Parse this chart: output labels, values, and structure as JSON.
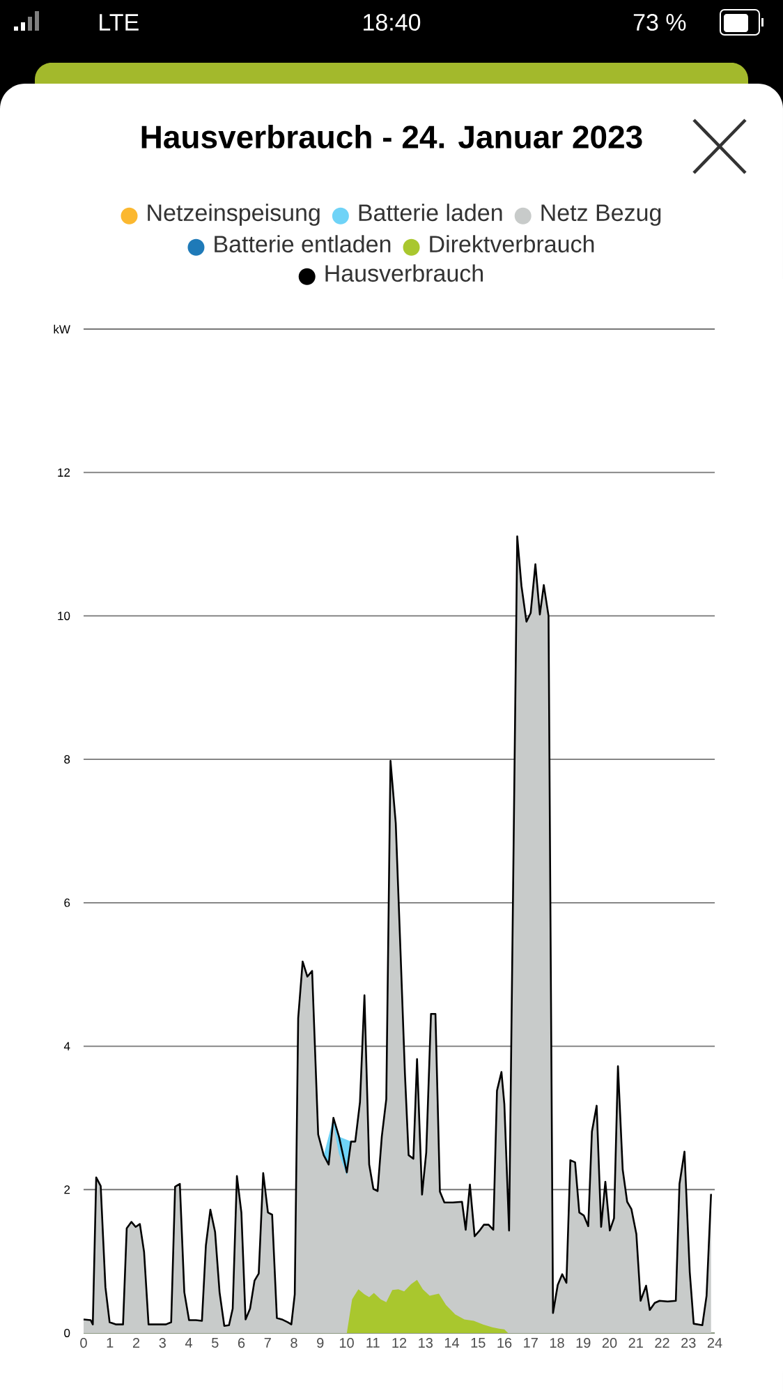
{
  "chart_data": {
    "type": "area",
    "title": "Hausverbrauch - 24. Januar 2023",
    "annotations": [
      "LTE",
      "18:40",
      "73 %"
    ],
    "xlim": [
      0,
      24
    ],
    "xticks": [
      0,
      1,
      2,
      3,
      4,
      5,
      6,
      7,
      8,
      9,
      10,
      11,
      12,
      13,
      14,
      15,
      16,
      17,
      18,
      19,
      20,
      21,
      22,
      23,
      24
    ],
    "ylim": [
      0,
      14
    ],
    "yticks": [
      0,
      2,
      4,
      6,
      8,
      10,
      12,
      {
        "value": 14,
        "label": "kW"
      }
    ],
    "grid": "y",
    "legend": "top",
    "marker": "none",
    "line_style": "solid",
    "series": [
      {
        "name": "Netzeinspeisung",
        "color": "#fbb830"
      },
      {
        "name": "Batterie laden",
        "color": "#6fd3f7",
        "x": [
          9.13,
          9.32,
          9.5,
          9.71,
          10.01,
          10.17,
          10.33
        ],
        "values": [
          2.48,
          null,
          3.0,
          2.74,
          null,
          2.67,
          2.67
        ]
      },
      {
        "name": "Netz Bezug",
        "color": "#c8cbca",
        "x": [
          0,
          0.27,
          0.35,
          0.48,
          0.65,
          0.83,
          0.99,
          1.24,
          1.5,
          1.64,
          1.82,
          1.98,
          2.14,
          2.3,
          2.47,
          2.73,
          3.13,
          3.33,
          3.48,
          3.66,
          3.83,
          4.01,
          4.27,
          4.5,
          4.65,
          4.82,
          5.0,
          5.17,
          5.35,
          5.53,
          5.67,
          5.83,
          6.0,
          6.16,
          6.33,
          6.5,
          6.66,
          6.83,
          7.01,
          7.17,
          7.35,
          7.54,
          7.77,
          7.9,
          8.03,
          8.16,
          8.33,
          8.51,
          8.69,
          8.92,
          9.13,
          9.32,
          9.5,
          9.71,
          10.01,
          10.17,
          10.33,
          10.51,
          10.68,
          10.86,
          11.02,
          11.18,
          11.34,
          11.51,
          11.67,
          11.87,
          12.06,
          12.22,
          12.36,
          12.54,
          12.68,
          12.87,
          13.03,
          13.21,
          13.38,
          13.55,
          13.72,
          14.04,
          14.39,
          14.53,
          14.69,
          14.87,
          15.04,
          15.22,
          15.4,
          15.58,
          15.72,
          15.89,
          16.0,
          16.18,
          16.49,
          16.65,
          16.84,
          17.0,
          17.18,
          17.35,
          17.5,
          17.68,
          17.85,
          18.03,
          18.2,
          18.36,
          18.51,
          18.69,
          18.85,
          19.02,
          19.19,
          19.33,
          19.51,
          19.68,
          19.84,
          20.01,
          20.17,
          20.32,
          20.5,
          20.67,
          20.83,
          21.02,
          21.18,
          21.39,
          21.53,
          21.72,
          21.9,
          22.21,
          22.52,
          22.66,
          22.85,
          23.05,
          23.2,
          23.53,
          23.69,
          23.86
        ],
        "values": [
          0.19,
          0.18,
          0.12,
          2.17,
          2.05,
          0.64,
          0.15,
          0.12,
          0.12,
          1.46,
          1.55,
          1.48,
          1.52,
          1.13,
          0.12,
          0.12,
          0.12,
          0.15,
          2.04,
          2.08,
          0.57,
          0.18,
          0.18,
          0.17,
          1.22,
          1.72,
          1.41,
          0.57,
          0.1,
          0.11,
          0.34,
          2.19,
          1.68,
          0.19,
          0.34,
          0.73,
          0.83,
          2.23,
          1.68,
          1.65,
          0.21,
          0.19,
          0.15,
          0.12,
          0.54,
          4.39,
          5.18,
          4.97,
          5.05,
          2.77,
          2.48,
          2.35,
          2.9,
          2.5,
          2.2,
          2.67,
          2.67,
          3.22,
          4.71,
          2.35,
          2.01,
          1.98,
          2.74,
          3.26,
          7.98,
          7.11,
          5.23,
          3.61,
          2.48,
          2.43,
          3.82,
          1.93,
          2.52,
          4.45,
          4.45,
          1.97,
          1.82,
          1.82,
          1.83,
          1.44,
          2.07,
          1.35,
          1.42,
          1.51,
          1.51,
          1.44,
          3.38,
          3.64,
          3.19,
          1.43,
          11.11,
          10.42,
          9.92,
          10.04,
          10.72,
          10.02,
          10.43,
          10.0,
          0.28,
          0.67,
          0.82,
          0.7,
          2.41,
          2.38,
          1.68,
          1.64,
          1.49,
          2.81,
          3.17,
          1.48,
          2.11,
          1.43,
          1.6,
          3.72,
          2.28,
          1.83,
          1.73,
          1.38,
          0.45,
          0.66,
          0.32,
          0.42,
          0.45,
          0.44,
          0.45,
          2.08,
          2.53,
          0.85,
          0.13,
          0.11,
          0.52,
          1.94
        ]
      },
      {
        "name": "Batterie entladen",
        "color": "#1f7ab8"
      },
      {
        "name": "Direktverbrauch",
        "color": "#a9c72e",
        "x": [
          10.01,
          10.21,
          10.45,
          10.68,
          10.86,
          11.04,
          11.3,
          11.51,
          11.74,
          11.97,
          12.19,
          12.45,
          12.68,
          12.9,
          13.16,
          13.51,
          13.78,
          14.13,
          14.48,
          14.84,
          15.19,
          15.54,
          15.8,
          16.0,
          16.14
        ],
        "values": [
          0,
          0.47,
          0.61,
          0.54,
          0.5,
          0.56,
          0.47,
          0.43,
          0.6,
          0.61,
          0.58,
          0.68,
          0.74,
          0.61,
          0.52,
          0.55,
          0.39,
          0.26,
          0.19,
          0.17,
          0.12,
          0.08,
          0.06,
          0.05,
          0
        ]
      },
      {
        "name": "Hausverbrauch",
        "type": "line",
        "color": "#000000",
        "x": [
          0,
          0.27,
          0.35,
          0.48,
          0.65,
          0.83,
          0.99,
          1.24,
          1.5,
          1.64,
          1.82,
          1.98,
          2.14,
          2.3,
          2.47,
          2.73,
          3.13,
          3.33,
          3.48,
          3.66,
          3.83,
          4.01,
          4.27,
          4.5,
          4.65,
          4.82,
          5.0,
          5.17,
          5.35,
          5.53,
          5.67,
          5.83,
          6.0,
          6.16,
          6.33,
          6.5,
          6.66,
          6.83,
          7.01,
          7.17,
          7.35,
          7.54,
          7.77,
          7.9,
          8.03,
          8.16,
          8.33,
          8.51,
          8.69,
          8.92,
          9.13,
          9.32,
          9.5,
          9.71,
          10.01,
          10.17,
          10.33,
          10.51,
          10.68,
          10.86,
          11.02,
          11.18,
          11.34,
          11.51,
          11.67,
          11.87,
          12.06,
          12.22,
          12.36,
          12.54,
          12.68,
          12.87,
          13.03,
          13.21,
          13.38,
          13.55,
          13.72,
          14.04,
          14.39,
          14.53,
          14.69,
          14.87,
          15.04,
          15.22,
          15.4,
          15.58,
          15.72,
          15.89,
          16.0,
          16.18,
          16.49,
          16.65,
          16.84,
          17.0,
          17.18,
          17.35,
          17.5,
          17.68,
          17.85,
          18.03,
          18.2,
          18.36,
          18.51,
          18.69,
          18.85,
          19.02,
          19.19,
          19.33,
          19.51,
          19.68,
          19.84,
          20.01,
          20.17,
          20.32,
          20.5,
          20.67,
          20.83,
          21.02,
          21.18,
          21.39,
          21.53,
          21.72,
          21.9,
          22.21,
          22.52,
          22.66,
          22.85,
          23.05,
          23.2,
          23.53,
          23.69,
          23.86
        ],
        "values": [
          0.19,
          0.18,
          0.12,
          2.17,
          2.05,
          0.64,
          0.15,
          0.12,
          0.12,
          1.46,
          1.55,
          1.48,
          1.52,
          1.13,
          0.12,
          0.12,
          0.12,
          0.15,
          2.04,
          2.08,
          0.57,
          0.18,
          0.18,
          0.17,
          1.22,
          1.72,
          1.41,
          0.57,
          0.1,
          0.11,
          0.34,
          2.19,
          1.68,
          0.19,
          0.34,
          0.73,
          0.83,
          2.23,
          1.68,
          1.65,
          0.21,
          0.19,
          0.15,
          0.12,
          0.54,
          4.39,
          5.18,
          4.97,
          5.05,
          2.77,
          2.48,
          2.35,
          3.0,
          2.74,
          2.24,
          2.67,
          2.67,
          3.22,
          4.71,
          2.35,
          2.01,
          1.98,
          2.74,
          3.26,
          7.98,
          7.11,
          5.23,
          3.61,
          2.48,
          2.43,
          3.82,
          1.93,
          2.52,
          4.45,
          4.45,
          1.97,
          1.82,
          1.82,
          1.83,
          1.44,
          2.07,
          1.35,
          1.42,
          1.51,
          1.51,
          1.44,
          3.38,
          3.64,
          3.19,
          1.43,
          11.11,
          10.42,
          9.92,
          10.04,
          10.72,
          10.02,
          10.43,
          10.0,
          0.28,
          0.67,
          0.82,
          0.7,
          2.41,
          2.38,
          1.68,
          1.64,
          1.49,
          2.81,
          3.17,
          1.48,
          2.11,
          1.43,
          1.6,
          3.72,
          2.28,
          1.83,
          1.73,
          1.38,
          0.45,
          0.66,
          0.32,
          0.42,
          0.45,
          0.44,
          0.45,
          2.08,
          2.53,
          0.85,
          0.13,
          0.11,
          0.52,
          1.94
        ]
      }
    ]
  }
}
